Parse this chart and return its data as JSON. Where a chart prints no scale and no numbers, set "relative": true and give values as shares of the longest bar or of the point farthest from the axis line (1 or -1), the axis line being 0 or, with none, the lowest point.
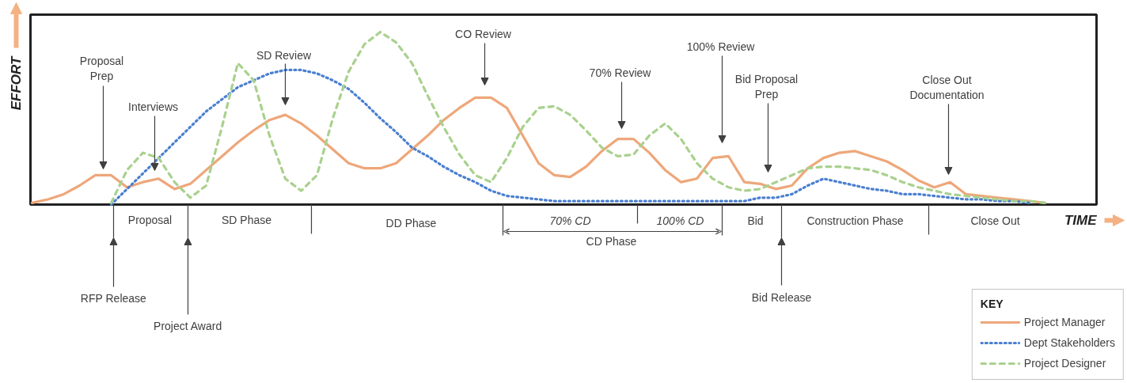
{
  "chart_data": {
    "type": "line",
    "relative": true,
    "xlabel": "TIME",
    "ylabel": "EFFORT",
    "legend_title": "KEY",
    "legend": "bottom right",
    "categories": [
      null,
      null,
      null,
      null,
      null,
      null,
      null,
      null,
      null,
      null,
      null,
      null,
      null,
      null,
      null,
      null,
      null,
      null,
      null,
      null,
      null,
      null,
      null,
      null,
      null,
      null,
      null,
      null,
      null,
      null,
      null,
      null,
      null,
      null,
      null,
      null,
      null,
      null,
      null,
      null,
      null,
      null,
      null,
      null,
      null,
      null,
      null,
      null,
      null,
      null,
      null,
      null,
      null,
      null,
      null,
      null,
      null,
      null,
      null,
      null,
      null,
      null,
      null,
      null,
      null
    ],
    "series": [
      {
        "name": "Project Manager",
        "color": "#eea77a",
        "line_style": "solid",
        "values": [
          0.01,
          0.03,
          0.06,
          0.11,
          0.17,
          0.17,
          0.1,
          0.13,
          0.15,
          0.09,
          0.12,
          0.2,
          0.28,
          0.36,
          0.43,
          0.49,
          0.52,
          0.47,
          0.4,
          0.32,
          0.24,
          0.21,
          0.21,
          0.24,
          0.32,
          0.4,
          0.49,
          0.56,
          0.62,
          0.62,
          0.56,
          0.4,
          0.24,
          0.17,
          0.16,
          0.22,
          0.31,
          0.38,
          0.38,
          0.3,
          0.2,
          0.13,
          0.15,
          0.27,
          0.28,
          0.13,
          0.12,
          0.09,
          0.11,
          0.21,
          0.27,
          0.3,
          0.31,
          0.28,
          0.25,
          0.2,
          0.14,
          0.1,
          0.13,
          0.06,
          0.05,
          0.04,
          0.03,
          0.02,
          0.01
        ]
      },
      {
        "name": "Dept Stakeholders",
        "color": "#4a7fd0",
        "line_style": "dotted",
        "values": [
          null,
          null,
          null,
          null,
          null,
          0.0,
          0.09,
          0.18,
          0.27,
          0.36,
          0.45,
          0.54,
          0.61,
          0.68,
          0.72,
          0.76,
          0.78,
          0.78,
          0.76,
          0.72,
          0.67,
          0.59,
          0.5,
          0.42,
          0.33,
          0.28,
          0.22,
          0.17,
          0.13,
          0.08,
          0.05,
          0.04,
          0.03,
          0.02,
          0.02,
          0.02,
          0.02,
          0.02,
          0.02,
          0.02,
          0.02,
          0.02,
          0.02,
          0.02,
          0.02,
          0.02,
          0.04,
          0.04,
          0.06,
          0.11,
          0.15,
          0.13,
          0.11,
          0.09,
          0.08,
          0.06,
          0.06,
          0.05,
          0.04,
          0.03,
          0.03,
          0.02,
          0.02,
          0.01,
          null
        ]
      },
      {
        "name": "Project Designer",
        "color": "#a9d18e",
        "line_style": "dashed",
        "values": [
          null,
          null,
          null,
          null,
          null,
          0.01,
          0.2,
          0.3,
          0.27,
          0.13,
          0.04,
          0.11,
          0.45,
          0.82,
          0.72,
          0.4,
          0.15,
          0.08,
          0.17,
          0.5,
          0.77,
          0.93,
          1.0,
          0.94,
          0.82,
          0.63,
          0.45,
          0.29,
          0.17,
          0.13,
          0.27,
          0.45,
          0.56,
          0.57,
          0.52,
          0.43,
          0.33,
          0.28,
          0.29,
          0.4,
          0.47,
          0.38,
          0.24,
          0.15,
          0.1,
          0.08,
          0.09,
          0.13,
          0.17,
          0.21,
          0.22,
          0.22,
          0.21,
          0.2,
          0.17,
          0.13,
          0.1,
          0.08,
          0.06,
          0.05,
          0.04,
          0.03,
          0.02,
          0.02,
          0.01
        ]
      }
    ],
    "annotations": [
      "Proposal Prep",
      "Interviews",
      "SD Review",
      "CO Review",
      "70% Review",
      "100% Review",
      "Bid Proposal Prep",
      "Close Out Documentation",
      "RFP Release",
      "Project Award",
      "Bid Release",
      "Proposal",
      "SD Phase",
      "DD Phase",
      "70% CD",
      "100% CD",
      "CD Phase",
      "Bid",
      "Construction Phase",
      "Close Out"
    ]
  }
}
